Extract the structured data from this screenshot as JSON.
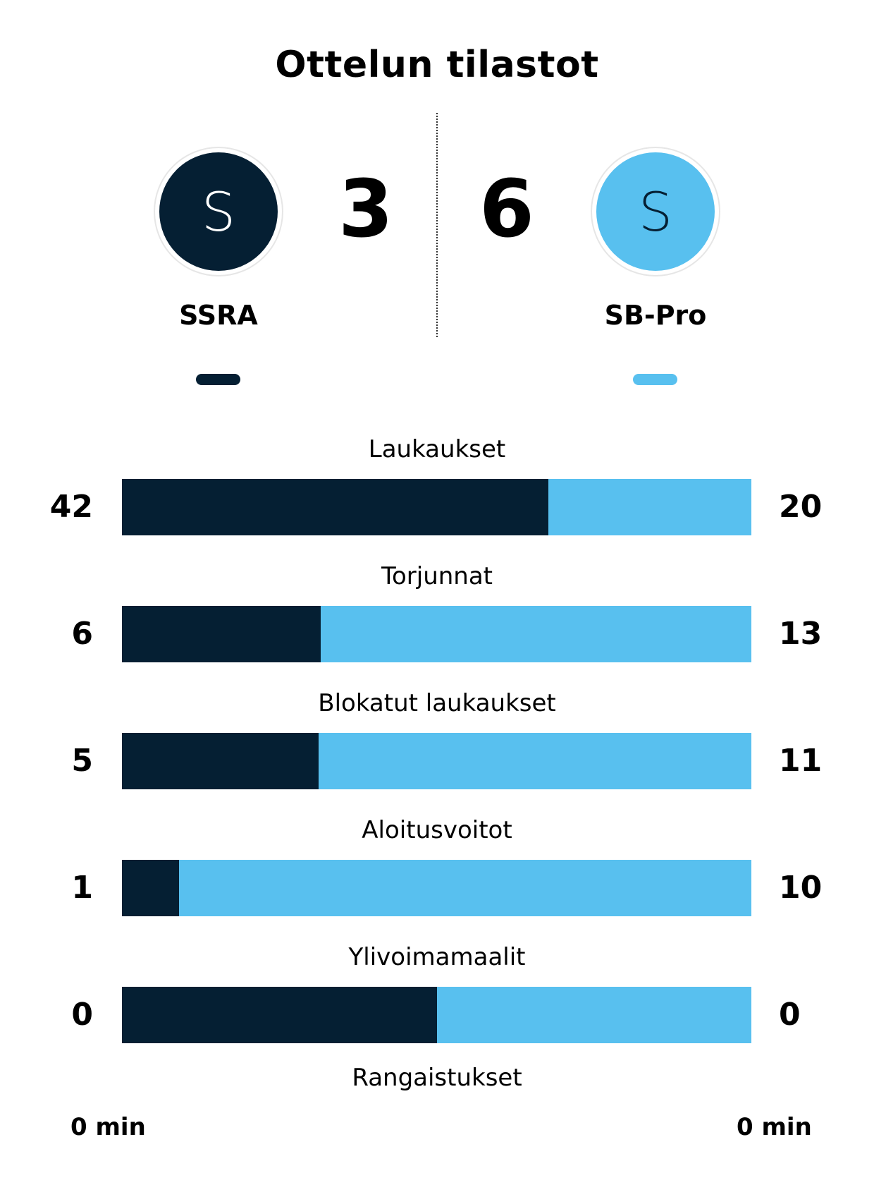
{
  "title": "Ottelun tilastot",
  "colors": {
    "home": "#051f33",
    "away": "#58c0ef",
    "home_text": "#ffffff",
    "away_text": "#051f33"
  },
  "home": {
    "name": "SSRA",
    "logo_letter": "S",
    "score": "3"
  },
  "away": {
    "name": "SB-Pro",
    "logo_letter": "S",
    "score": "6"
  },
  "stats": [
    {
      "label": "Laukaukset",
      "home": 42,
      "away": 20
    },
    {
      "label": "Torjunnat",
      "home": 6,
      "away": 13
    },
    {
      "label": "Blokatut laukaukset",
      "home": 5,
      "away": 11
    },
    {
      "label": "Aloitusvoitot",
      "home": 1,
      "away": 10
    },
    {
      "label": "Ylivoimamaalit",
      "home": 0,
      "away": 0
    }
  ],
  "penalties": {
    "label": "Rangaistukset",
    "home": "0 min",
    "away": "0 min"
  }
}
